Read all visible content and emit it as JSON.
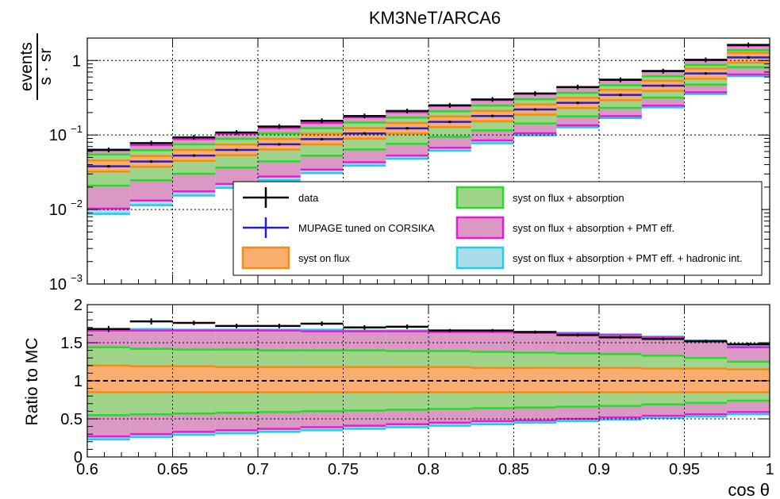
{
  "chart_data": [
    {
      "type": "area",
      "panel": "top",
      "title": "KM3NeT/ARCA6",
      "ylabel_numerator": "events",
      "ylabel_denominator": "s · sr",
      "yscale": "log",
      "ylim": [
        0.001,
        2.0
      ],
      "xlim": [
        0.6,
        1.0
      ],
      "grid": true,
      "legend_position": "center",
      "bin_edges": [
        0.6,
        0.625,
        0.65,
        0.675,
        0.7,
        0.725,
        0.75,
        0.775,
        0.8,
        0.825,
        0.85,
        0.875,
        0.9,
        0.925,
        0.95,
        0.975,
        1.0
      ],
      "series": [
        {
          "name": "data",
          "kind": "points",
          "color": "#000000",
          "values": [
            0.063,
            0.078,
            0.093,
            0.108,
            0.13,
            0.155,
            0.18,
            0.21,
            0.25,
            0.3,
            0.36,
            0.44,
            0.55,
            0.72,
            1.02,
            1.62
          ]
        },
        {
          "name": "MUPAGE tuned on CORSIKA",
          "kind": "line",
          "color": "#1f1fd0",
          "values": [
            0.038,
            0.044,
            0.053,
            0.063,
            0.075,
            0.088,
            0.105,
            0.123,
            0.15,
            0.18,
            0.22,
            0.27,
            0.345,
            0.46,
            0.67,
            1.1
          ]
        },
        {
          "name": "syst on flux",
          "kind": "band",
          "fill": "#f9ad6f",
          "stroke": "#f28c14",
          "ratio_low": [
            0.85,
            0.85,
            0.85,
            0.85,
            0.85,
            0.85,
            0.85,
            0.85,
            0.85,
            0.85,
            0.85,
            0.85,
            0.85,
            0.85,
            0.85,
            0.85
          ],
          "ratio_high": [
            1.2,
            1.19,
            1.19,
            1.18,
            1.18,
            1.18,
            1.18,
            1.18,
            1.18,
            1.17,
            1.17,
            1.17,
            1.17,
            1.16,
            1.16,
            1.15
          ]
        },
        {
          "name": "syst on flux + absorption",
          "kind": "band",
          "fill": "#a0d48a",
          "stroke": "#22dd22",
          "ratio_low": [
            0.55,
            0.56,
            0.57,
            0.58,
            0.59,
            0.6,
            0.61,
            0.62,
            0.63,
            0.64,
            0.65,
            0.66,
            0.67,
            0.69,
            0.71,
            0.74
          ],
          "ratio_high": [
            1.44,
            1.42,
            1.41,
            1.41,
            1.4,
            1.4,
            1.4,
            1.39,
            1.39,
            1.38,
            1.37,
            1.36,
            1.35,
            1.33,
            1.3,
            1.25
          ]
        },
        {
          "name": "syst on flux + absorption + PMT eff.",
          "kind": "band",
          "fill": "#dc98c4",
          "stroke": "#e81ad6",
          "ratio_low": [
            0.27,
            0.3,
            0.33,
            0.35,
            0.37,
            0.39,
            0.41,
            0.43,
            0.45,
            0.47,
            0.48,
            0.5,
            0.52,
            0.54,
            0.56,
            0.59
          ],
          "ratio_high": [
            1.66,
            1.66,
            1.66,
            1.66,
            1.66,
            1.65,
            1.65,
            1.65,
            1.64,
            1.64,
            1.63,
            1.62,
            1.6,
            1.57,
            1.52,
            1.44
          ]
        },
        {
          "name": "syst on flux + absorption + PMT eff. + hadronic int.",
          "kind": "band",
          "fill": "#a8dcea",
          "stroke": "#22ccee",
          "ratio_low": [
            0.23,
            0.26,
            0.29,
            0.31,
            0.33,
            0.35,
            0.37,
            0.39,
            0.41,
            0.43,
            0.45,
            0.47,
            0.49,
            0.51,
            0.53,
            0.56
          ],
          "ratio_high": [
            1.68,
            1.68,
            1.67,
            1.67,
            1.67,
            1.67,
            1.66,
            1.66,
            1.66,
            1.65,
            1.64,
            1.63,
            1.61,
            1.58,
            1.53,
            1.46
          ]
        }
      ],
      "y_ticks": [
        {
          "value": 0.001,
          "label": "10",
          "exp": "−3"
        },
        {
          "value": 0.01,
          "label": "10",
          "exp": "−2"
        },
        {
          "value": 0.1,
          "label": "10",
          "exp": "−1"
        },
        {
          "value": 1,
          "label": "1",
          "exp": ""
        }
      ]
    },
    {
      "type": "area",
      "panel": "bottom",
      "ylabel": "Ratio to MC",
      "xlabel": "cos θ",
      "ylim": [
        0,
        2
      ],
      "xlim": [
        0.6,
        1.0
      ],
      "grid": true,
      "reference_line": 1.0,
      "data_ratio": [
        1.68,
        1.78,
        1.76,
        1.72,
        1.72,
        1.75,
        1.7,
        1.71,
        1.66,
        1.66,
        1.64,
        1.6,
        1.57,
        1.55,
        1.52,
        1.48
      ],
      "data_ratio_err": [
        0.04,
        0.04,
        0.03,
        0.03,
        0.03,
        0.03,
        0.03,
        0.03,
        0.02,
        0.02,
        0.02,
        0.02,
        0.02,
        0.02,
        0.02,
        0.02
      ],
      "y_ticks": [
        {
          "value": 0,
          "label": "0"
        },
        {
          "value": 0.5,
          "label": "0.5"
        },
        {
          "value": 1,
          "label": "1"
        },
        {
          "value": 1.5,
          "label": "1.5"
        },
        {
          "value": 2,
          "label": "2"
        }
      ],
      "x_ticks": [
        {
          "value": 0.6,
          "label": "0.6"
        },
        {
          "value": 0.65,
          "label": "0.65"
        },
        {
          "value": 0.7,
          "label": "0.7"
        },
        {
          "value": 0.75,
          "label": "0.75"
        },
        {
          "value": 0.8,
          "label": "0.8"
        },
        {
          "value": 0.85,
          "label": "0.85"
        },
        {
          "value": 0.9,
          "label": "0.9"
        },
        {
          "value": 0.95,
          "label": "0.95"
        },
        {
          "value": 1.0,
          "label": "1"
        }
      ]
    }
  ]
}
